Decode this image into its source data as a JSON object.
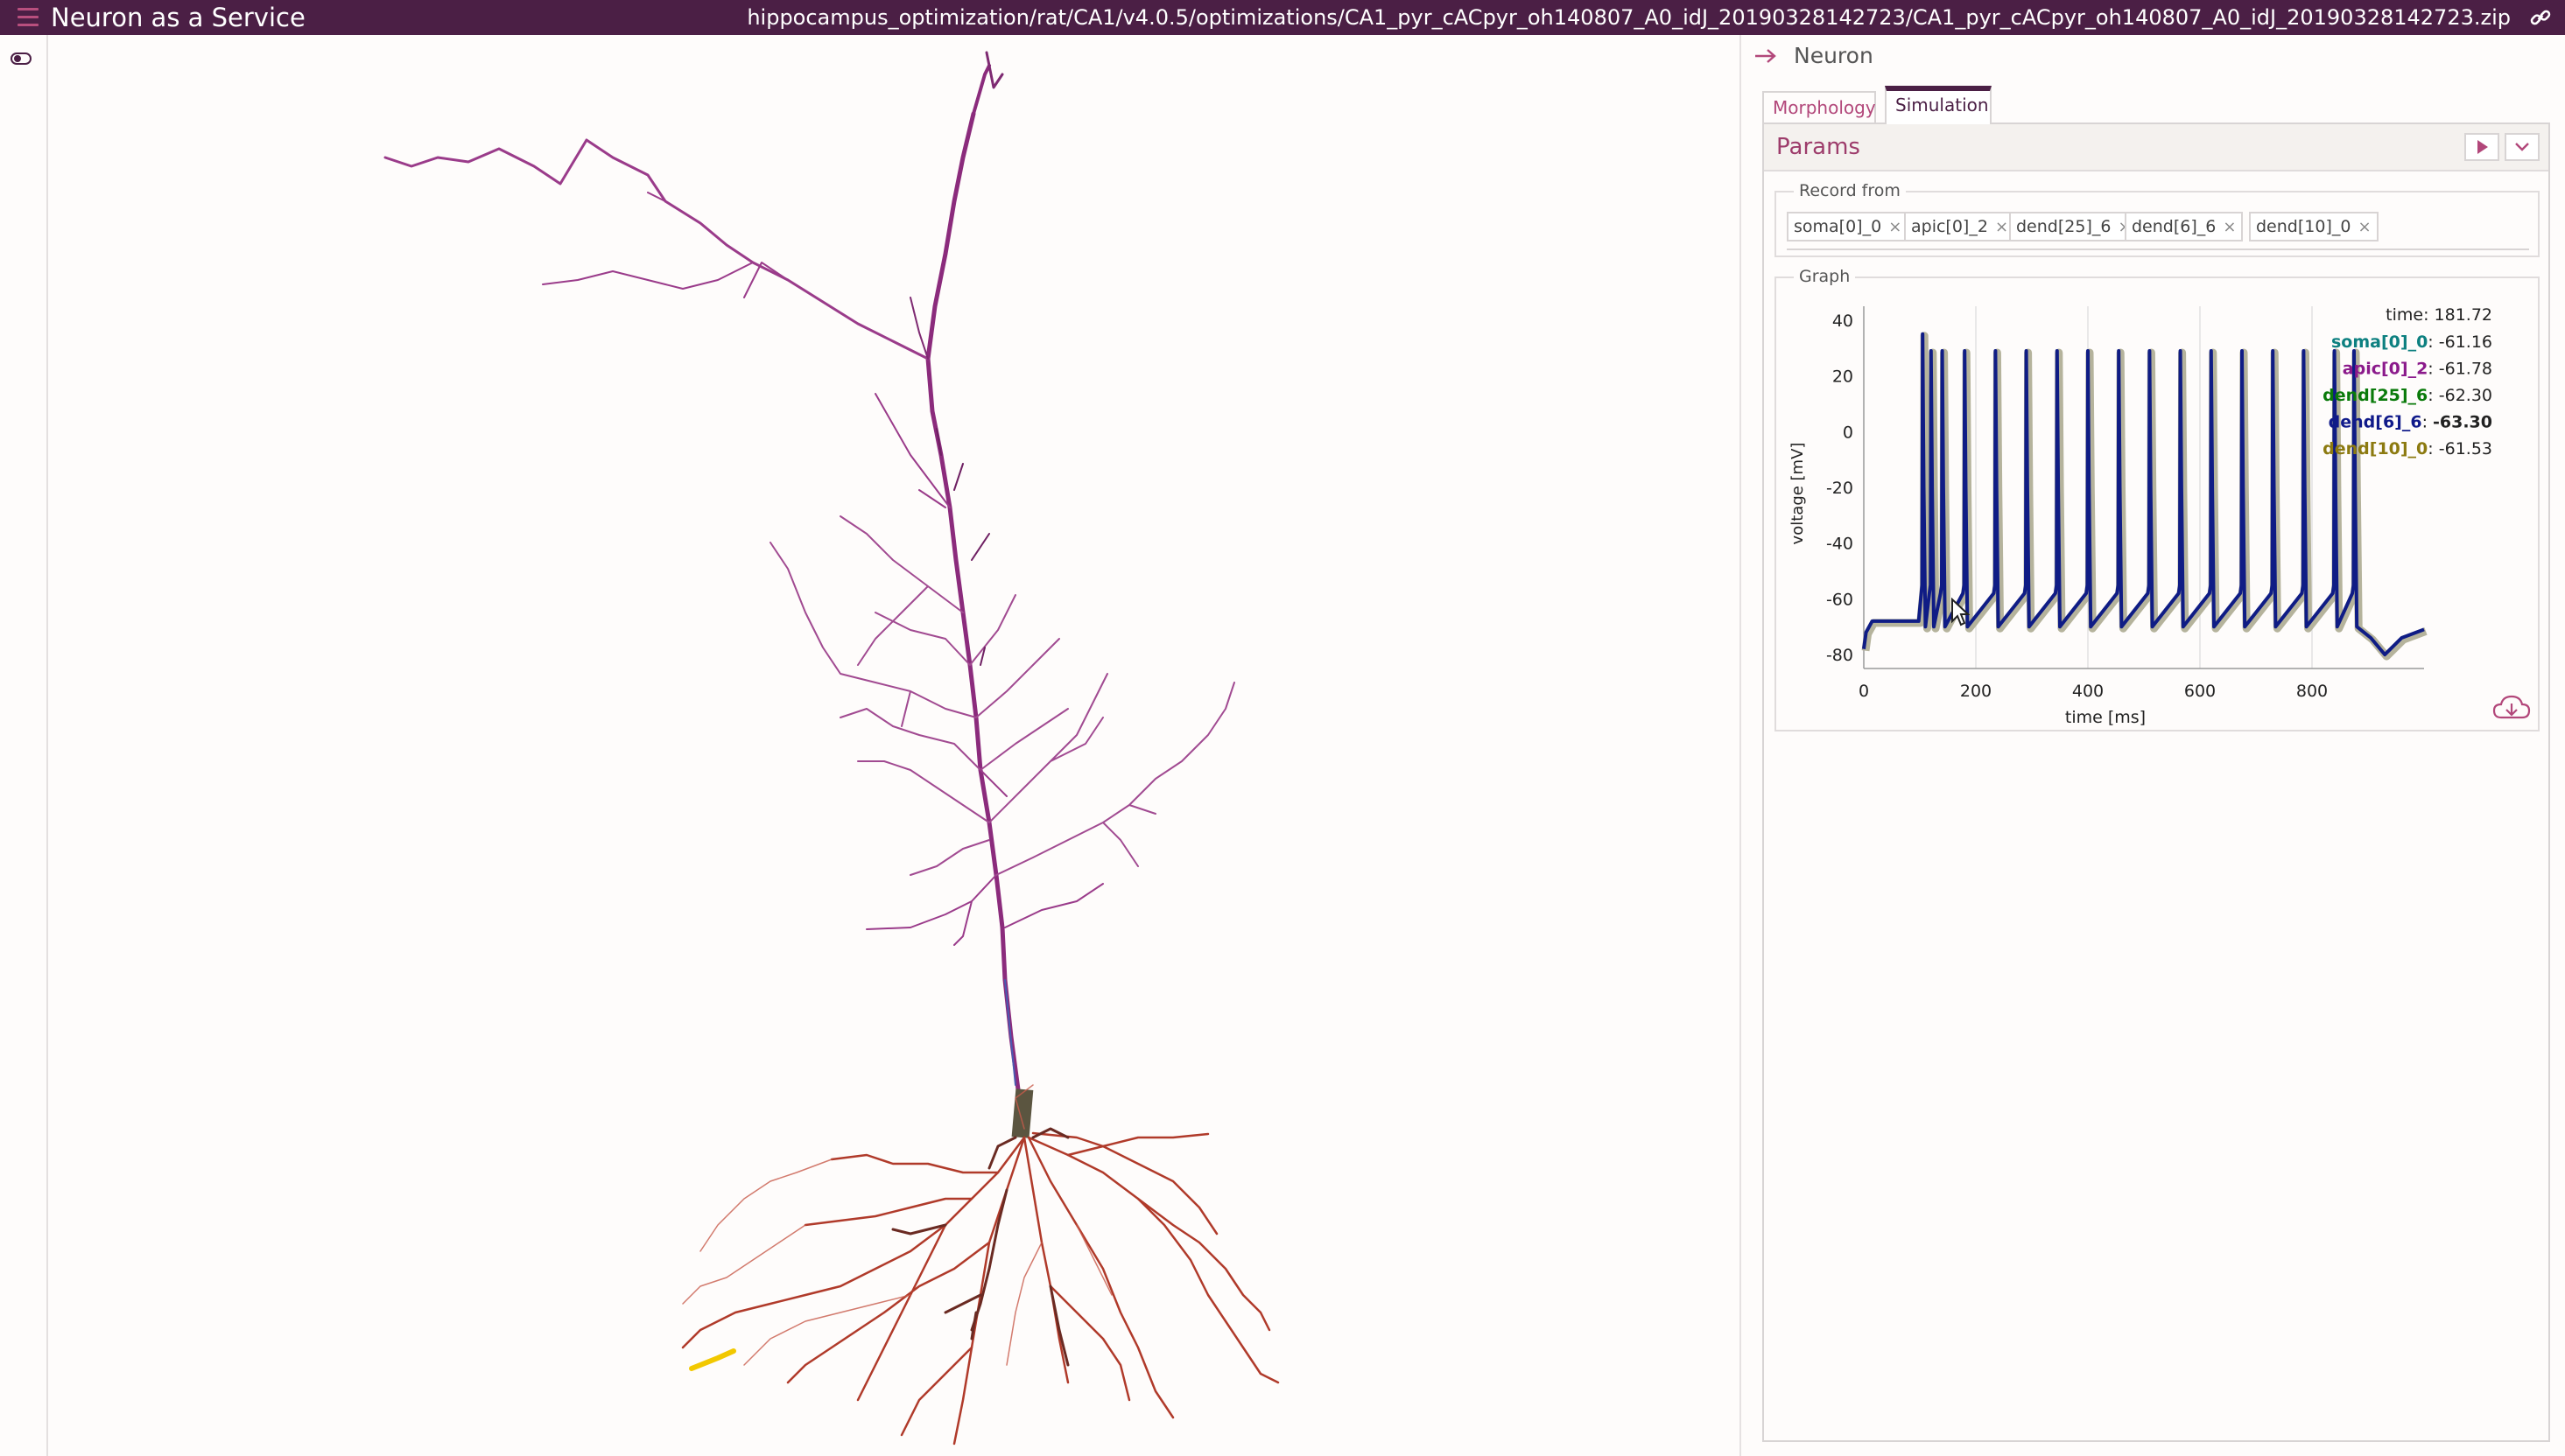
{
  "app": {
    "title": "Neuron as a Service",
    "file_path": "hippocampus_optimization/rat/CA1/v4.0.5/optimizations/CA1_pyr_cACpyr_oh140807_A0_idJ_20190328142723/CA1_pyr_cACpyr_oh140807_A0_idJ_20190328142723.zip",
    "icons": {
      "menu": "hamburger-menu-icon",
      "link": "link-icon",
      "toggle": "toggle-icon",
      "arrow": "arrow-right-icon",
      "run": "play-icon",
      "expand": "chevron-down-icon",
      "download": "cloud-download-icon",
      "cursor": "mouse-pointer-icon"
    }
  },
  "panel": {
    "title": "Neuron",
    "tabs": [
      {
        "label": "Morphology",
        "active": false
      },
      {
        "label": "Simulation",
        "active": true
      }
    ],
    "params": {
      "title": "Params",
      "record_from": {
        "legend": "Record from",
        "chips": [
          {
            "label": "soma[0]_0"
          },
          {
            "label": "apic[0]_2"
          },
          {
            "label": "dend[25]_6"
          },
          {
            "label": "dend[6]_6"
          },
          {
            "label": "dend[10]_0"
          }
        ],
        "remove_symbol": "×"
      },
      "graph_legend": "Graph"
    }
  },
  "chart_data": {
    "type": "line",
    "xlabel": "time [ms]",
    "ylabel": "voltage [mV]",
    "xlim": [
      0,
      1000
    ],
    "ylim": [
      -85,
      45
    ],
    "x_ticks": [
      0,
      200,
      400,
      600,
      800
    ],
    "y_ticks": [
      40,
      20,
      0,
      -20,
      -40,
      -60,
      -80
    ],
    "grid": "vertical",
    "legend_position": "top-right",
    "readout": {
      "time_label": "time:",
      "time_value": "181.72",
      "entries": [
        {
          "name": "soma[0]_0",
          "value": "-61.16",
          "color": "#0d8080",
          "highlighted": false
        },
        {
          "name": "apic[0]_2",
          "value": "-61.78",
          "color": "#8b1a8b",
          "highlighted": false
        },
        {
          "name": "dend[25]_6",
          "value": "-62.30",
          "color": "#0a7a0a",
          "highlighted": false
        },
        {
          "name": "dend[6]_6",
          "value": "-63.30",
          "color": "#101a8a",
          "highlighted": true
        },
        {
          "name": "dend[10]_0",
          "value": "-61.53",
          "color": "#8c7a10",
          "highlighted": false
        }
      ]
    },
    "trace": {
      "rest_mV": -70,
      "baseline_mV": -68,
      "stim_start_ms": 100,
      "stim_end_ms": 900,
      "spike_peak_mV": 29,
      "first_spike_peak_mV": 35,
      "trough_mV": -70,
      "spike_times_ms": [
        105,
        120,
        140,
        180,
        235,
        290,
        345,
        400,
        455,
        510,
        565,
        620,
        675,
        730,
        785,
        840,
        875
      ],
      "colors": {
        "primary": "#0f1c85",
        "shadow": "#b5b39c"
      }
    }
  }
}
